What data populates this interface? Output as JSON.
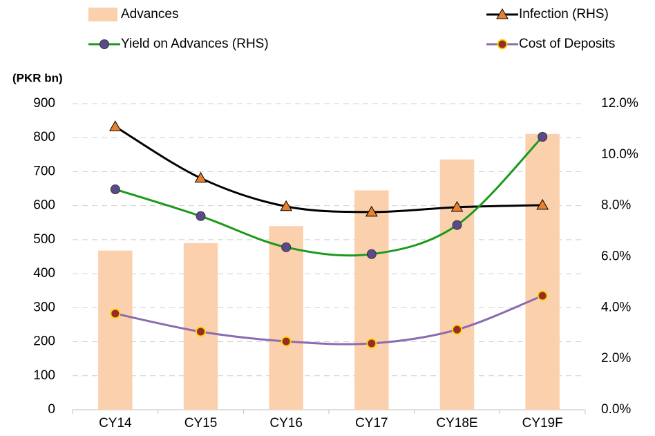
{
  "chart_data": {
    "type": "bar_line",
    "y_axis_label": "(PKR bn)",
    "categories": [
      "CY14",
      "CY15",
      "CY16",
      "CY17",
      "CY18E",
      "CY19F"
    ],
    "series": [
      {
        "name": "Advances",
        "type": "bar",
        "color": "#fbd0ad",
        "values": [
          468,
          490,
          540,
          645,
          736,
          811
        ]
      },
      {
        "name": "Infection (RHS)",
        "type": "line",
        "axis": "y2",
        "color": "#000000",
        "marker": "triangle",
        "marker_color": "#e8802e",
        "values": [
          11.1,
          9.08,
          7.97,
          7.75,
          7.94,
          8.02
        ]
      },
      {
        "name": "Yield on Advances (RHS)",
        "type": "line",
        "axis": "y2",
        "color": "#1a9a1a",
        "marker": "circle",
        "marker_color": "#5b4a8a",
        "values": [
          8.64,
          7.59,
          6.37,
          6.1,
          7.24,
          10.7
        ]
      },
      {
        "name": "Cost of Deposits",
        "type": "line",
        "axis": "y2",
        "color": "#8a6bb0",
        "marker": "circle",
        "marker_color": "#9b2a2a",
        "marker_edge": "#f5d800",
        "values": [
          3.77,
          3.06,
          2.68,
          2.6,
          3.14,
          4.47
        ]
      }
    ],
    "ylim": [
      0,
      900
    ],
    "yticks": [
      0,
      100,
      200,
      300,
      400,
      500,
      600,
      700,
      800,
      900
    ],
    "y2lim": [
      0,
      12
    ],
    "y2ticks": [
      {
        "value": 0,
        "label": "0.0%"
      },
      {
        "value": 2,
        "label": "2.0%"
      },
      {
        "value": 4,
        "label": "4.0%"
      },
      {
        "value": 6,
        "label": "6.0%"
      },
      {
        "value": 8,
        "label": "8.0%"
      },
      {
        "value": 10,
        "label": "10.0%"
      },
      {
        "value": 12,
        "label": "12.0%"
      }
    ],
    "grid": true
  }
}
